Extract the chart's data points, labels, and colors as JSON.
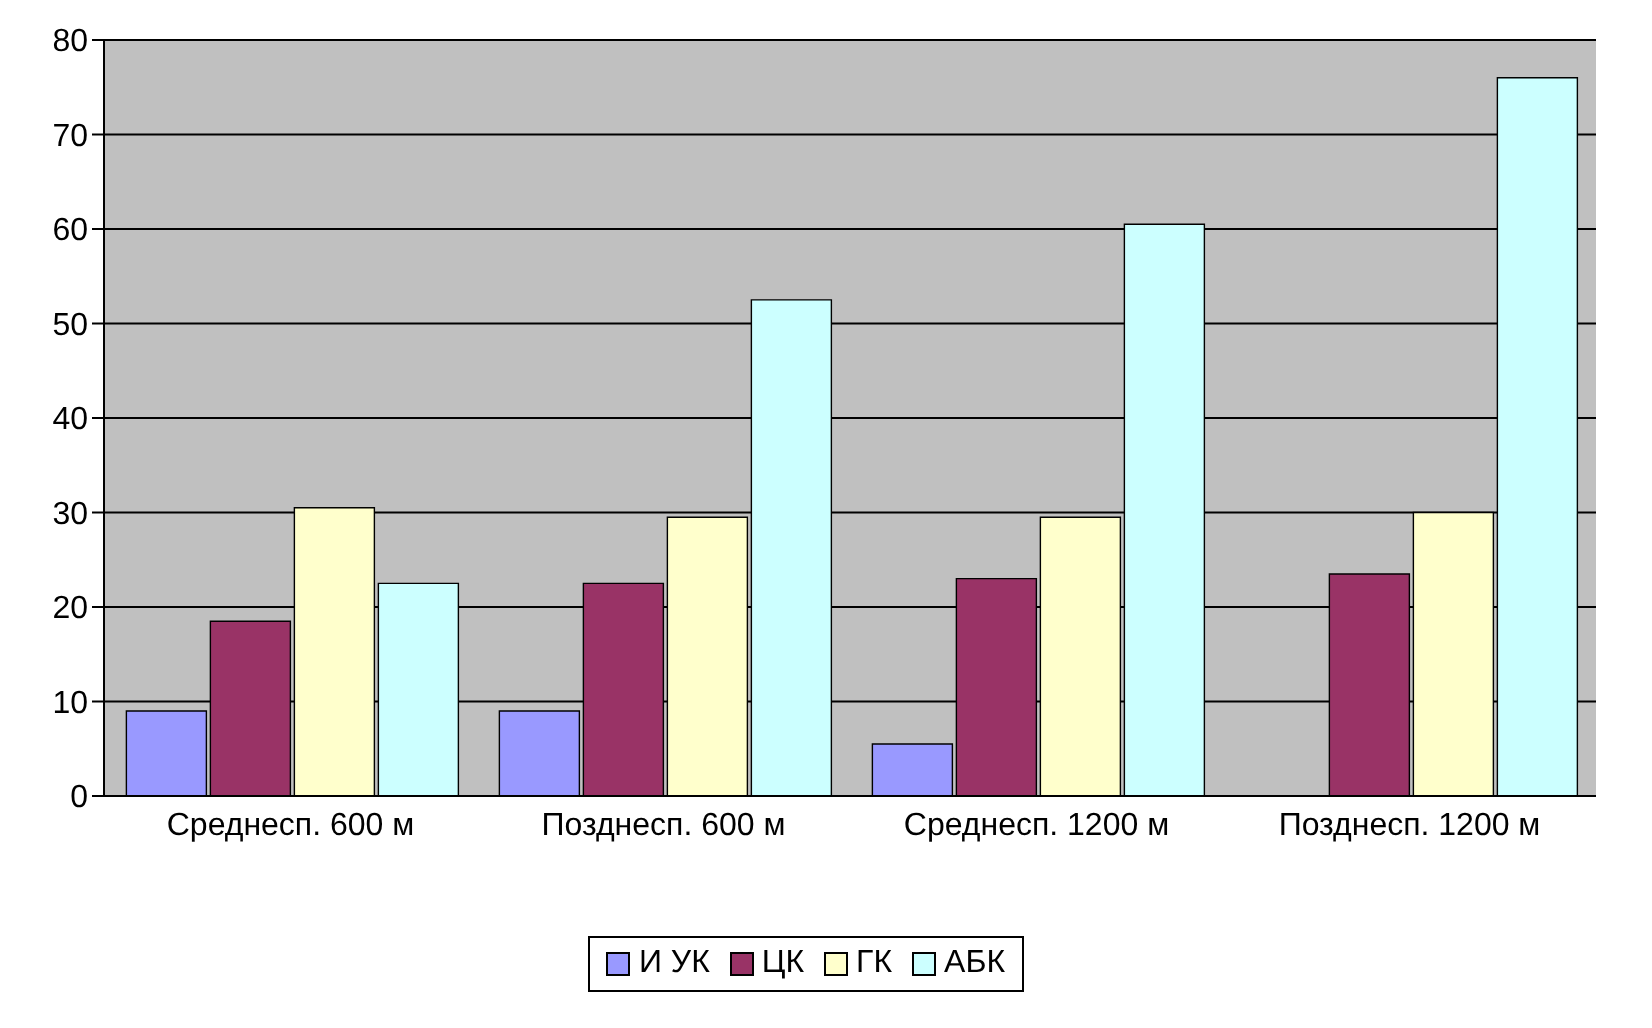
{
  "chart_data": {
    "type": "bar",
    "categories": [
      "Среднесп. 600 м",
      "Позднесп. 600 м",
      "Среднесп. 1200 м",
      "Позднесп. 1200 м"
    ],
    "series": [
      {
        "name": "И УК",
        "color": "#9999ff",
        "values": [
          9,
          9,
          5.5,
          0
        ]
      },
      {
        "name": "ЦК",
        "color": "#993366",
        "values": [
          18.5,
          22.5,
          23,
          23.5
        ]
      },
      {
        "name": "ГК",
        "color": "#ffffcc",
        "values": [
          30.5,
          29.5,
          29.5,
          30
        ]
      },
      {
        "name": "АБК",
        "color": "#ccffff",
        "values": [
          22.5,
          52.5,
          60.5,
          76
        ]
      }
    ],
    "ylim": [
      0,
      80
    ],
    "yticks": [
      0,
      10,
      20,
      30,
      40,
      50,
      60,
      70,
      80
    ],
    "grid": "y",
    "legend": "bottom"
  }
}
